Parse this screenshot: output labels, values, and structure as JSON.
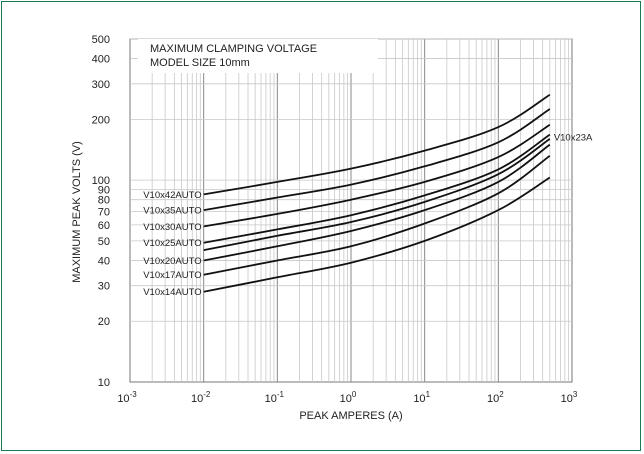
{
  "chart_data": {
    "type": "line",
    "title": "MAXIMUM CLAMPING VOLTAGE",
    "subtitle": "MODEL SIZE 10mm",
    "xlabel": "PEAK AMPERES (A)",
    "ylabel": "MAXIMUM PEAK VOLTS (V)",
    "x_scale": "log",
    "y_scale": "log",
    "xlim": [
      0.001,
      1000
    ],
    "ylim": [
      10,
      500
    ],
    "grid": true,
    "x_ticks": [
      {
        "base": "10",
        "exp": "-3"
      },
      {
        "base": "10",
        "exp": "-2"
      },
      {
        "base": "10",
        "exp": "-1"
      },
      {
        "base": "10",
        "exp": "0"
      },
      {
        "base": "10",
        "exp": "1"
      },
      {
        "base": "10",
        "exp": "2"
      },
      {
        "base": "10",
        "exp": "3"
      }
    ],
    "y_ticks": [
      {
        "value": 10,
        "label": "10"
      },
      {
        "value": 20,
        "label": "20"
      },
      {
        "value": 30,
        "label": "30"
      },
      {
        "value": 40,
        "label": "40"
      },
      {
        "value": 50,
        "label": "50"
      },
      {
        "value": 60,
        "label": "60"
      },
      {
        "value": 70,
        "label": "70"
      },
      {
        "value": 80,
        "label": "80"
      },
      {
        "value": 90,
        "label": "90"
      },
      {
        "value": 100,
        "label": "100"
      },
      {
        "value": 200,
        "label": "200"
      },
      {
        "value": 300,
        "label": "300"
      },
      {
        "value": 400,
        "label": "400"
      },
      {
        "value": 500,
        "label": "500"
      }
    ],
    "x": [
      0.01,
      0.1,
      1,
      10,
      100,
      500
    ],
    "series": [
      {
        "name": "V10x42AUTO",
        "values": [
          85,
          98,
          114,
          140,
          183,
          265
        ]
      },
      {
        "name": "V10x35AUTO",
        "values": [
          71,
          82,
          95,
          117,
          154,
          225
        ]
      },
      {
        "name": "V10x30AUTO",
        "values": [
          59,
          68,
          80,
          98,
          130,
          188
        ]
      },
      {
        "name": "V10x25AUTO",
        "values": [
          49,
          57,
          67,
          84,
          113,
          168
        ]
      },
      {
        "name": "V10x23A",
        "values": [
          45,
          53,
          62,
          78,
          107,
          160
        ]
      },
      {
        "name": "V10x20AUTO",
        "values": [
          40,
          47,
          56,
          71,
          98,
          150
        ]
      },
      {
        "name": "V10x17AUTO",
        "values": [
          34,
          40,
          47,
          61,
          86,
          132
        ]
      },
      {
        "name": "V10x14AUTO",
        "values": [
          28,
          33,
          39,
          50,
          71,
          103
        ]
      }
    ]
  }
}
